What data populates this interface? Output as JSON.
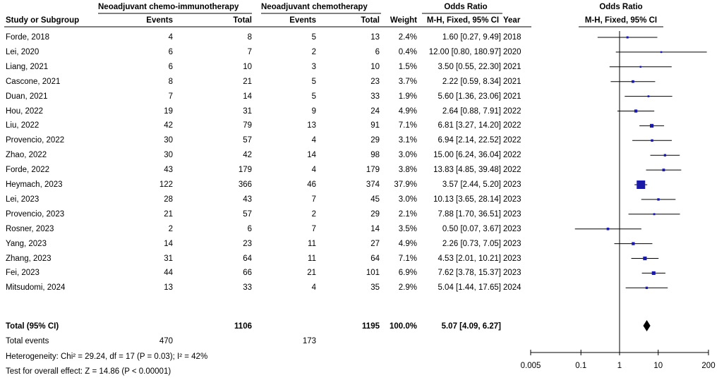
{
  "headers": {
    "group1": "Neoadjuvant chemo-immunotherapy",
    "group2": "Neoadjuvant chemotherapy",
    "or_table": "Odds Ratio",
    "or_plot": "Odds Ratio",
    "study": "Study or Subgroup",
    "events1": "Events",
    "total1": "Total",
    "events2": "Events",
    "total2": "Total",
    "weight": "Weight",
    "method_table": "M-H, Fixed, 95% CI",
    "year": "Year",
    "method_plot": "M-H, Fixed, 95% CI"
  },
  "chart_data": {
    "type": "forest",
    "x_scale": "log",
    "xlim": [
      0.005,
      200
    ],
    "ticks": [
      "0.005",
      "0.1",
      "1",
      "10",
      "200"
    ],
    "tick_values": [
      0.005,
      0.1,
      1,
      10,
      200
    ],
    "studies": [
      {
        "name": "Forde, 2018",
        "e1": "4",
        "t1": "8",
        "e2": "5",
        "t2": "13",
        "weight": "2.4%",
        "ci": "1.60 [0.27, 9.49]",
        "year": "2018",
        "or": 1.6,
        "lo": 0.27,
        "hi": 9.49,
        "w": 2.4
      },
      {
        "name": "Lei, 2020",
        "e1": "6",
        "t1": "7",
        "e2": "2",
        "t2": "6",
        "weight": "0.4%",
        "ci": "12.00 [0.80, 180.97]",
        "year": "2020",
        "or": 12.0,
        "lo": 0.8,
        "hi": 180.97,
        "w": 0.4
      },
      {
        "name": "Liang, 2021",
        "e1": "6",
        "t1": "10",
        "e2": "3",
        "t2": "10",
        "weight": "1.5%",
        "ci": "3.50 [0.55, 22.30]",
        "year": "2021",
        "or": 3.5,
        "lo": 0.55,
        "hi": 22.3,
        "w": 1.5
      },
      {
        "name": "Cascone, 2021",
        "e1": "8",
        "t1": "21",
        "e2": "5",
        "t2": "23",
        "weight": "3.7%",
        "ci": "2.22 [0.59, 8.34]",
        "year": "2021",
        "or": 2.22,
        "lo": 0.59,
        "hi": 8.34,
        "w": 3.7
      },
      {
        "name": "Duan, 2021",
        "e1": "7",
        "t1": "14",
        "e2": "5",
        "t2": "33",
        "weight": "1.9%",
        "ci": "5.60 [1.36, 23.06]",
        "year": "2021",
        "or": 5.6,
        "lo": 1.36,
        "hi": 23.06,
        "w": 1.9
      },
      {
        "name": "Hou, 2022",
        "e1": "19",
        "t1": "31",
        "e2": "9",
        "t2": "24",
        "weight": "4.9%",
        "ci": "2.64 [0.88, 7.91]",
        "year": "2022",
        "or": 2.64,
        "lo": 0.88,
        "hi": 7.91,
        "w": 4.9
      },
      {
        "name": "Liu, 2022",
        "e1": "42",
        "t1": "79",
        "e2": "13",
        "t2": "91",
        "weight": "7.1%",
        "ci": "6.81 [3.27, 14.20]",
        "year": "2022",
        "or": 6.81,
        "lo": 3.27,
        "hi": 14.2,
        "w": 7.1
      },
      {
        "name": "Provencio, 2022",
        "e1": "30",
        "t1": "57",
        "e2": "4",
        "t2": "29",
        "weight": "3.1%",
        "ci": "6.94 [2.14, 22.52]",
        "year": "2022",
        "or": 6.94,
        "lo": 2.14,
        "hi": 22.52,
        "w": 3.1
      },
      {
        "name": "Zhao, 2022",
        "e1": "30",
        "t1": "42",
        "e2": "14",
        "t2": "98",
        "weight": "3.0%",
        "ci": "15.00 [6.24, 36.04]",
        "year": "2022",
        "or": 15.0,
        "lo": 6.24,
        "hi": 36.04,
        "w": 3.0
      },
      {
        "name": "Forde, 2022",
        "e1": "43",
        "t1": "179",
        "e2": "4",
        "t2": "179",
        "weight": "3.8%",
        "ci": "13.83 [4.85, 39.48]",
        "year": "2022",
        "or": 13.83,
        "lo": 4.85,
        "hi": 39.48,
        "w": 3.8
      },
      {
        "name": "Heymach, 2023",
        "e1": "122",
        "t1": "366",
        "e2": "46",
        "t2": "374",
        "weight": "37.9%",
        "ci": "3.57 [2.44, 5.20]",
        "year": "2023",
        "or": 3.57,
        "lo": 2.44,
        "hi": 5.2,
        "w": 37.9
      },
      {
        "name": "Lei, 2023",
        "e1": "28",
        "t1": "43",
        "e2": "7",
        "t2": "45",
        "weight": "3.0%",
        "ci": "10.13 [3.65, 28.14]",
        "year": "2023",
        "or": 10.13,
        "lo": 3.65,
        "hi": 28.14,
        "w": 3.0
      },
      {
        "name": "Provencio, 2023",
        "e1": "21",
        "t1": "57",
        "e2": "2",
        "t2": "29",
        "weight": "2.1%",
        "ci": "7.88 [1.70, 36.51]",
        "year": "2023",
        "or": 7.88,
        "lo": 1.7,
        "hi": 36.51,
        "w": 2.1
      },
      {
        "name": "Rosner, 2023",
        "e1": "2",
        "t1": "6",
        "e2": "7",
        "t2": "14",
        "weight": "3.5%",
        "ci": "0.50 [0.07, 3.67]",
        "year": "2023",
        "or": 0.5,
        "lo": 0.07,
        "hi": 3.67,
        "w": 3.5
      },
      {
        "name": "Yang, 2023",
        "e1": "14",
        "t1": "23",
        "e2": "11",
        "t2": "27",
        "weight": "4.9%",
        "ci": "2.26 [0.73, 7.05]",
        "year": "2023",
        "or": 2.26,
        "lo": 0.73,
        "hi": 7.05,
        "w": 4.9
      },
      {
        "name": "Zhang, 2023",
        "e1": "31",
        "t1": "64",
        "e2": "11",
        "t2": "64",
        "weight": "7.1%",
        "ci": "4.53 [2.01, 10.21]",
        "year": "2023",
        "or": 4.53,
        "lo": 2.01,
        "hi": 10.21,
        "w": 7.1
      },
      {
        "name": "Fei, 2023",
        "e1": "44",
        "t1": "66",
        "e2": "21",
        "t2": "101",
        "weight": "6.9%",
        "ci": "7.62 [3.78, 15.37]",
        "year": "2023",
        "or": 7.62,
        "lo": 3.78,
        "hi": 15.37,
        "w": 6.9
      },
      {
        "name": "Mitsudomi, 2024",
        "e1": "13",
        "t1": "33",
        "e2": "4",
        "t2": "35",
        "weight": "2.9%",
        "ci": "5.04 [1.44, 17.65]",
        "year": "2024",
        "or": 5.04,
        "lo": 1.44,
        "hi": 17.65,
        "w": 2.9
      }
    ],
    "total": {
      "label": "Total (95% CI)",
      "t1": "1106",
      "t2": "1195",
      "weight": "100.0%",
      "ci": "5.07 [4.09, 6.27]",
      "or": 5.07,
      "lo": 4.09,
      "hi": 6.27
    },
    "total_events": {
      "label": "Total events",
      "e1": "470",
      "e2": "173"
    },
    "heterogeneity": "Heterogeneity: Chi² = 29.24, df = 17 (P = 0.03); I² = 42%",
    "overall_effect": "Test for overall effect: Z = 14.86 (P < 0.00001)",
    "colors": {
      "box": "#1a1aa6",
      "line": "#000000",
      "diamond": "#000000"
    }
  }
}
